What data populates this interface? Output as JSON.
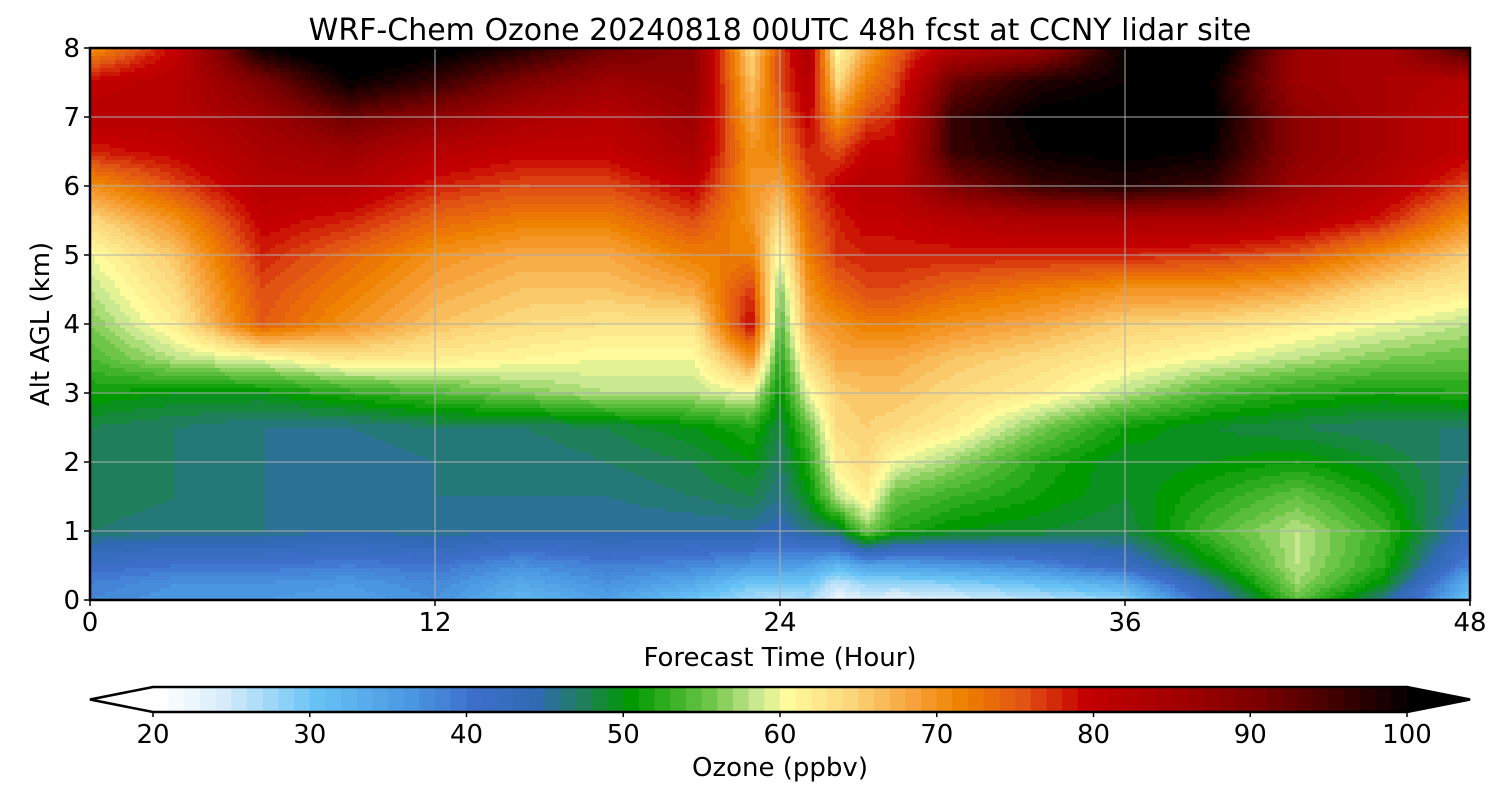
{
  "chart_data": {
    "type": "heatmap",
    "title": "WRF-Chem Ozone  20240818 00UTC 48h fcst at CCNY lidar site",
    "xlabel": "Forecast Time (Hour)",
    "ylabel": "Alt AGL (km)",
    "xlim": [
      0,
      48
    ],
    "ylim": [
      0,
      8
    ],
    "xticks": [
      "0",
      "12",
      "24",
      "36",
      "48"
    ],
    "yticks": [
      "0",
      "1",
      "2",
      "3",
      "4",
      "5",
      "6",
      "7",
      "8"
    ],
    "grid": true,
    "x": [
      0,
      3,
      6,
      9,
      12,
      15,
      18,
      21,
      23,
      24,
      25,
      26,
      27,
      28,
      30,
      33,
      36,
      39,
      42,
      45,
      48
    ],
    "y": [
      0,
      0.25,
      0.5,
      1,
      1.5,
      2,
      2.5,
      3,
      3.5,
      4,
      4.5,
      5,
      5.5,
      6,
      6.5,
      7,
      7.5,
      8
    ],
    "z": [
      [
        38,
        36,
        36,
        35,
        37,
        32,
        35,
        30,
        27,
        26,
        27,
        22,
        24,
        23,
        24,
        26,
        28,
        42,
        55,
        46,
        30
      ],
      [
        39,
        37,
        37,
        36,
        38,
        34,
        37,
        34,
        30,
        30,
        30,
        26,
        28,
        28,
        29,
        31,
        34,
        46,
        57,
        50,
        33
      ],
      [
        41,
        40,
        40,
        39,
        40,
        37,
        39,
        38,
        36,
        36,
        35,
        32,
        35,
        35,
        36,
        38,
        42,
        50,
        58,
        52,
        38
      ],
      [
        47,
        46,
        46,
        45,
        46,
        45,
        45,
        45,
        45,
        44,
        46,
        48,
        56,
        52,
        50,
        49,
        48,
        54,
        58,
        53,
        43
      ],
      [
        48,
        47,
        46,
        45,
        46,
        46,
        46,
        47,
        48,
        46,
        50,
        58,
        62,
        55,
        53,
        51,
        49,
        52,
        55,
        51,
        45
      ],
      [
        48,
        47,
        46,
        45,
        46,
        46,
        47,
        48,
        50,
        47,
        52,
        62,
        64,
        60,
        57,
        52,
        49,
        50,
        51,
        49,
        46
      ],
      [
        48,
        47,
        46,
        46,
        47,
        47,
        48,
        50,
        52,
        48,
        55,
        64,
        65,
        64,
        62,
        56,
        51,
        49,
        48,
        47,
        47
      ],
      [
        51,
        50,
        50,
        52,
        54,
        56,
        58,
        58,
        60,
        50,
        60,
        65,
        66,
        66,
        64,
        62,
        58,
        54,
        52,
        51,
        52
      ],
      [
        54,
        58,
        60,
        63,
        62,
        61,
        60,
        60,
        70,
        52,
        64,
        68,
        68,
        68,
        66,
        64,
        62,
        60,
        58,
        56,
        55
      ],
      [
        56,
        62,
        75,
        70,
        66,
        64,
        63,
        63,
        80,
        54,
        68,
        70,
        72,
        72,
        70,
        68,
        65,
        64,
        62,
        60,
        58
      ],
      [
        58,
        64,
        76,
        72,
        68,
        66,
        66,
        68,
        77,
        56,
        70,
        74,
        76,
        76,
        74,
        72,
        70,
        70,
        68,
        64,
        62
      ],
      [
        60,
        66,
        78,
        74,
        70,
        68,
        68,
        72,
        72,
        60,
        72,
        77,
        78,
        78,
        78,
        78,
        78,
        77,
        75,
        70,
        65
      ],
      [
        64,
        70,
        80,
        78,
        74,
        72,
        72,
        76,
        70,
        64,
        74,
        78,
        80,
        80,
        82,
        84,
        84,
        84,
        82,
        78,
        70
      ],
      [
        70,
        76,
        82,
        82,
        78,
        76,
        76,
        80,
        70,
        68,
        76,
        80,
        82,
        82,
        90,
        96,
        98,
        96,
        86,
        82,
        76
      ],
      [
        78,
        80,
        84,
        86,
        82,
        80,
        80,
        84,
        70,
        72,
        78,
        76,
        80,
        80,
        96,
        100,
        101,
        100,
        88,
        84,
        80
      ],
      [
        82,
        82,
        86,
        92,
        88,
        84,
        82,
        86,
        68,
        74,
        80,
        70,
        76,
        78,
        96,
        101,
        102,
        101,
        88,
        84,
        80
      ],
      [
        80,
        82,
        90,
        100,
        96,
        90,
        86,
        88,
        66,
        76,
        82,
        64,
        72,
        76,
        92,
        98,
        100,
        100,
        86,
        84,
        82
      ],
      [
        70,
        80,
        100,
        104,
        102,
        98,
        92,
        88,
        64,
        76,
        84,
        60,
        68,
        74,
        82,
        86,
        100,
        104,
        86,
        84,
        96
      ]
    ],
    "colorbar": {
      "label": "Ozone  (ppbv)",
      "min": 20,
      "max": 100,
      "step": 1,
      "extend": "both",
      "ticks": [
        "20",
        "30",
        "40",
        "50",
        "60",
        "70",
        "80",
        "90",
        "100"
      ],
      "stops": [
        [
          20,
          "#ffffff"
        ],
        [
          24,
          "#d6ecfa"
        ],
        [
          30,
          "#66c2f5"
        ],
        [
          36,
          "#4a96e0"
        ],
        [
          40,
          "#3d6fc9"
        ],
        [
          44,
          "#2f6ab3"
        ],
        [
          47,
          "#1f7f5a"
        ],
        [
          50,
          "#009900"
        ],
        [
          55,
          "#6dc648"
        ],
        [
          58,
          "#c9e88f"
        ],
        [
          60,
          "#fffb9c"
        ],
        [
          64,
          "#fbd67a"
        ],
        [
          68,
          "#f7a23a"
        ],
        [
          71,
          "#ef8200"
        ],
        [
          75,
          "#e25414"
        ],
        [
          79,
          "#c40000"
        ],
        [
          85,
          "#a10000"
        ],
        [
          90,
          "#7c0000"
        ],
        [
          95,
          "#400000"
        ],
        [
          100,
          "#000000"
        ]
      ]
    }
  }
}
